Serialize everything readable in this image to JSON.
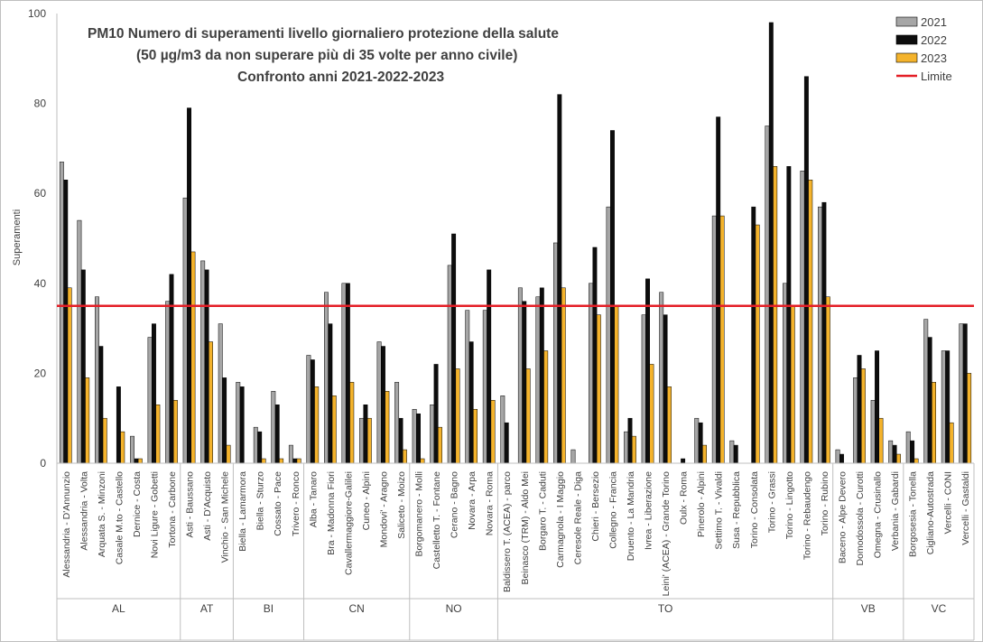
{
  "chart_data": {
    "type": "bar",
    "title_lines": [
      "PM10  Numero di superamenti livello giornaliero protezione della salute",
      "(50 µg/m3 da non superare più di 35 volte per anno civile)",
      "Confronto anni 2021-2022-2023"
    ],
    "ylabel": "Superamenti",
    "ylim": [
      0,
      100
    ],
    "yticks": [
      "0",
      "20",
      "40",
      "60",
      "80",
      "100"
    ],
    "limit": {
      "name": "Limite",
      "value": 35,
      "color": "#e41e26"
    },
    "series": [
      {
        "name": "2021",
        "color": "#a6a6a6"
      },
      {
        "name": "2022",
        "color": "#0d0d0d"
      },
      {
        "name": "2023",
        "color": "#f4b32c"
      }
    ],
    "groups": [
      {
        "name": "AL",
        "stations": [
          {
            "label": "Alessandria - D'Annunzio",
            "values": [
              67,
              63,
              39
            ]
          },
          {
            "label": "Alessandria - Volta",
            "values": [
              54,
              43,
              19
            ]
          },
          {
            "label": "Arquata S. - Minzoni",
            "values": [
              37,
              26,
              10
            ]
          },
          {
            "label": "Casale M.to - Castello",
            "values": [
              null,
              17,
              7
            ]
          },
          {
            "label": "Dernice - Costa",
            "values": [
              6,
              1,
              1
            ]
          },
          {
            "label": "Novi Ligure - Gobetti",
            "values": [
              28,
              31,
              13
            ]
          },
          {
            "label": "Tortona - Carbone",
            "values": [
              36,
              42,
              14
            ]
          }
        ]
      },
      {
        "name": "AT",
        "stations": [
          {
            "label": "Asti - Baussano",
            "values": [
              59,
              79,
              47
            ]
          },
          {
            "label": "Asti - D'Acquisto",
            "values": [
              45,
              43,
              27
            ]
          },
          {
            "label": "Vinchio - San Michele",
            "values": [
              31,
              19,
              4
            ]
          }
        ]
      },
      {
        "name": "BI",
        "stations": [
          {
            "label": "Biella - Lamarmora",
            "values": [
              18,
              17,
              null
            ]
          },
          {
            "label": "Biella - Sturzo",
            "values": [
              8,
              7,
              1
            ]
          },
          {
            "label": "Cossato - Pace",
            "values": [
              16,
              13,
              1
            ]
          },
          {
            "label": "Trivero - Ronco",
            "values": [
              4,
              1,
              1
            ]
          }
        ]
      },
      {
        "name": "CN",
        "stations": [
          {
            "label": "Alba - Tanaro",
            "values": [
              24,
              23,
              17
            ]
          },
          {
            "label": "Bra - Madonna Fiori",
            "values": [
              38,
              31,
              15
            ]
          },
          {
            "label": "Cavallermaggiore-Galilei",
            "values": [
              40,
              40,
              18
            ]
          },
          {
            "label": "Cuneo - Alpini",
            "values": [
              10,
              13,
              10
            ]
          },
          {
            "label": "Mondovi' - Aragno",
            "values": [
              27,
              26,
              16
            ]
          },
          {
            "label": "Saliceto - Moizo",
            "values": [
              18,
              10,
              3
            ]
          }
        ]
      },
      {
        "name": "NO",
        "stations": [
          {
            "label": "Borgomanero - Molli",
            "values": [
              12,
              11,
              1
            ]
          },
          {
            "label": "Castelletto T. - Fontane",
            "values": [
              13,
              22,
              8
            ]
          },
          {
            "label": "Cerano - Bagno",
            "values": [
              44,
              51,
              21
            ]
          },
          {
            "label": "Novara - Arpa",
            "values": [
              34,
              27,
              12
            ]
          },
          {
            "label": "Novara - Roma",
            "values": [
              34,
              43,
              14
            ]
          }
        ]
      },
      {
        "name": "TO",
        "stations": [
          {
            "label": "Baldissero T. (ACEA) - parco",
            "values": [
              15,
              9,
              null
            ]
          },
          {
            "label": "Beinasco (TRM) - Aldo Mei",
            "values": [
              39,
              36,
              21
            ]
          },
          {
            "label": "Borgaro T. - Caduti",
            "values": [
              37,
              39,
              25
            ]
          },
          {
            "label": "Carmagnola - I Maggio",
            "values": [
              49,
              82,
              39
            ]
          },
          {
            "label": "Ceresole Reale - Diga",
            "values": [
              3,
              null,
              null
            ]
          },
          {
            "label": "Chieri - Bersezio",
            "values": [
              40,
              48,
              33
            ]
          },
          {
            "label": "Collegno - Francia",
            "values": [
              57,
              74,
              35
            ]
          },
          {
            "label": "Druento - La Mandria",
            "values": [
              7,
              10,
              6
            ]
          },
          {
            "label": "Ivrea - Liberazione",
            "values": [
              33,
              41,
              22
            ]
          },
          {
            "label": "Leini' (ACEA) - Grande Torino",
            "values": [
              38,
              33,
              17
            ]
          },
          {
            "label": "Oulx - Roma",
            "values": [
              null,
              1,
              null
            ]
          },
          {
            "label": "Pinerolo - Alpini",
            "values": [
              10,
              9,
              4
            ]
          },
          {
            "label": "Settimo T. - Vivaldi",
            "values": [
              55,
              77,
              55
            ]
          },
          {
            "label": "Susa - Repubblica",
            "values": [
              5,
              4,
              null
            ]
          },
          {
            "label": "Torino - Consolata",
            "values": [
              null,
              57,
              53
            ]
          },
          {
            "label": "Torino - Grassi",
            "values": [
              75,
              98,
              66
            ]
          },
          {
            "label": "Torino - Lingotto",
            "values": [
              40,
              66,
              35
            ]
          },
          {
            "label": "Torino - Rebaudengo",
            "values": [
              65,
              86,
              63
            ]
          },
          {
            "label": "Torino - Rubino",
            "values": [
              57,
              58,
              37
            ]
          }
        ]
      },
      {
        "name": "VB",
        "stations": [
          {
            "label": "Baceno - Alpe Devero",
            "values": [
              3,
              2,
              null
            ]
          },
          {
            "label": "Domodossola - Curotti",
            "values": [
              19,
              24,
              21
            ]
          },
          {
            "label": "Omegna - Crusinallo",
            "values": [
              14,
              25,
              10
            ]
          },
          {
            "label": "Verbania - Gabardi",
            "values": [
              5,
              4,
              2
            ]
          }
        ]
      },
      {
        "name": "VC",
        "stations": [
          {
            "label": "Borgosesia - Tonella",
            "values": [
              7,
              5,
              1
            ]
          },
          {
            "label": "Cigliano-Autostrada",
            "values": [
              32,
              28,
              18
            ]
          },
          {
            "label": "Vercelli - CONI",
            "values": [
              25,
              25,
              9
            ]
          },
          {
            "label": "Vercelli - Gastaldi",
            "values": [
              31,
              31,
              20
            ]
          }
        ]
      }
    ],
    "legend_position": "top-right",
    "grid": false
  }
}
